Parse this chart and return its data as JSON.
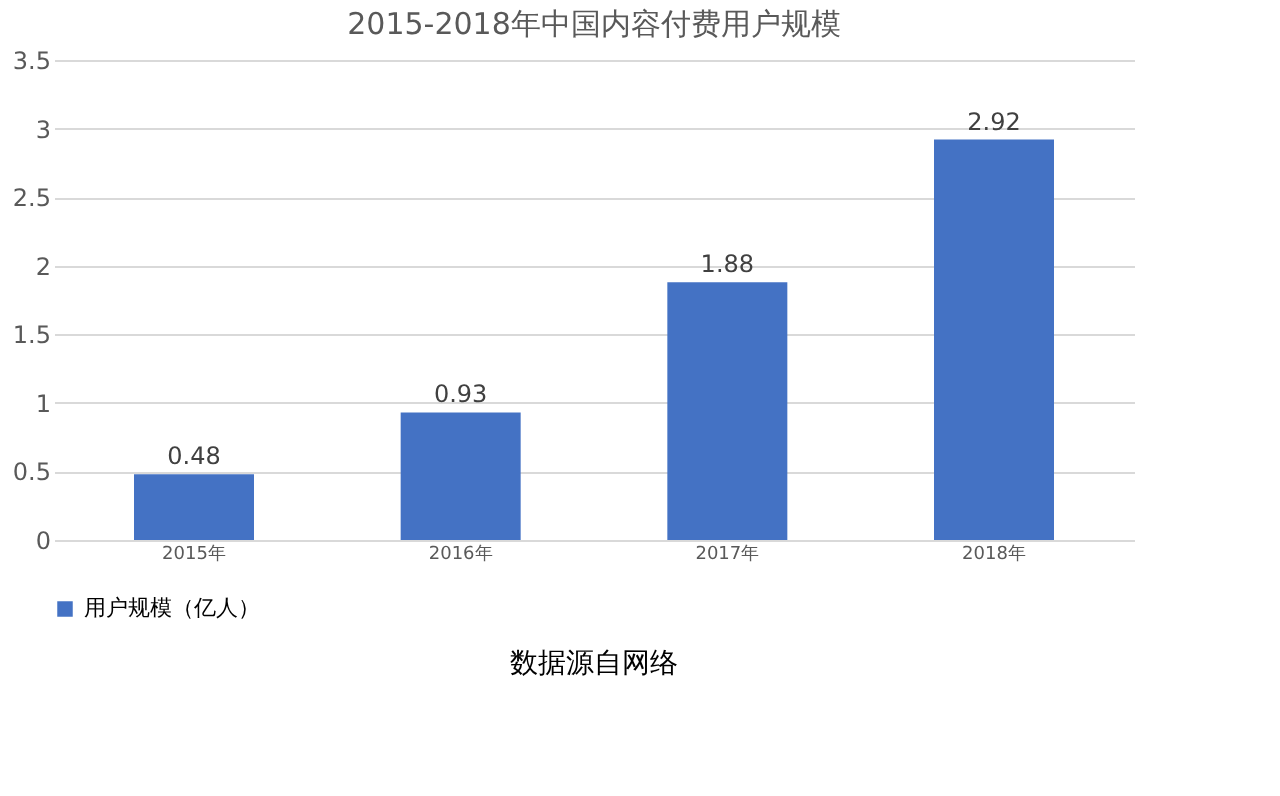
{
  "chart_data": {
    "type": "bar",
    "title": "2015-2018年中国内容付费用户规模",
    "categories": [
      "2015年",
      "2016年",
      "2017年",
      "2018年"
    ],
    "series": [
      {
        "name": "用户规模（亿人）",
        "color": "#4472c4",
        "values": [
          0.48,
          0.93,
          1.88,
          2.92
        ]
      }
    ],
    "ylim": [
      0,
      3.5
    ],
    "yticks": [
      0,
      0.5,
      1,
      1.5,
      2,
      2.5,
      3,
      3.5
    ],
    "grid": "y",
    "legend": "bottom",
    "data_labels": true,
    "annotations": [
      "数据源自网络"
    ]
  }
}
